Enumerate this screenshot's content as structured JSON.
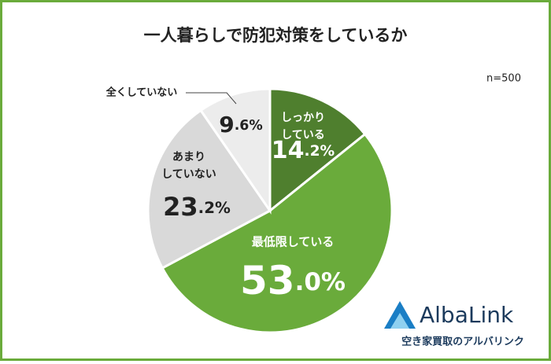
{
  "chart_data": {
    "type": "pie",
    "title": "一人暮らしで防犯対策をしているか",
    "note": "n=500",
    "categories": [
      [
        "しっかり",
        "している"
      ],
      [
        "最低限している"
      ],
      [
        "あまり",
        "していない"
      ],
      [
        "全くしていない"
      ]
    ],
    "values": [
      14.2,
      53.0,
      23.2,
      9.6
    ],
    "value_labels": [
      "14.2%",
      "53.0%",
      "23.2%",
      "9.6%"
    ],
    "colors": [
      "#4f7f2e",
      "#6aab3b",
      "#d9d9d9",
      "#ececec"
    ]
  },
  "logo": {
    "name": "AlbaLink",
    "tagline": "空き家買取のアルバリンク"
  }
}
